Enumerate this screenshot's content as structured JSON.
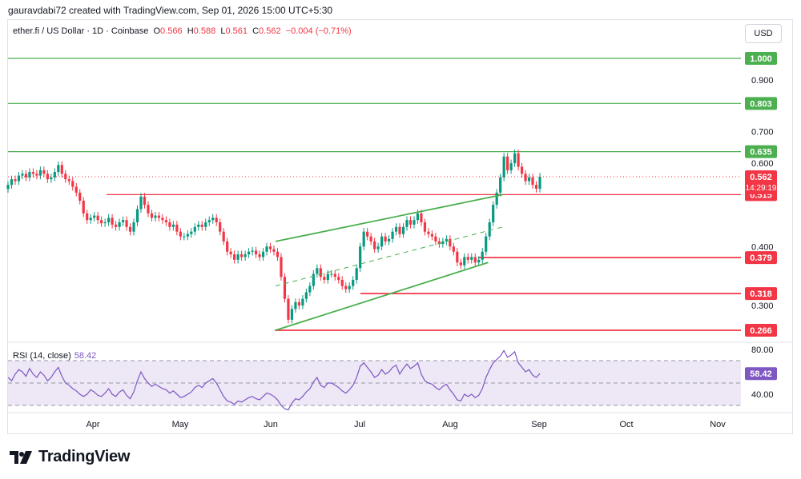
{
  "header": {
    "attribution": "gauravdabi72 created with TradingView.com, Sep 01, 2026 15:00 UTC+5:30"
  },
  "legend": {
    "symbol": "ether.fi / US Dollar · 1D · Coinbase",
    "o_label": "O",
    "o_value": "0.566",
    "h_label": "H",
    "h_value": "0.588",
    "l_label": "L",
    "l_value": "0.561",
    "c_label": "C",
    "c_value": "0.562",
    "change": "−0.004 (−0.71%)"
  },
  "currency_button": "USD",
  "rsi_panel": {
    "label": "RSI (14, close)",
    "value": "58.42"
  },
  "footer": {
    "logo_text": "TradingView"
  },
  "colors": {
    "up": "#089981",
    "down": "#f23645",
    "support_line": "#f23645",
    "resistance_line": "#4caf50",
    "channel": "#4caf50",
    "rsi_line": "#7e57c2",
    "rsi_band": "#ede7f6",
    "current_price_dotted": "#f23645"
  },
  "chart_data": [
    {
      "type": "candlestick",
      "title": "ether.fi / US Dollar · 1D · Coinbase",
      "x_tick_labels": [
        "Apr",
        "May",
        "Jun",
        "Jul",
        "Aug",
        "Sep",
        "Oct",
        "Nov"
      ],
      "y_tick_labels": [
        "0.900",
        "0.700",
        "0.600",
        "0.400",
        "0.300"
      ],
      "ylim": [
        0.24,
        1.1
      ],
      "y_scale": "log",
      "grid": false,
      "horizontal_levels": [
        {
          "value": 1.0,
          "label": "1.000",
          "style": "resistance"
        },
        {
          "value": 0.803,
          "label": "0.803",
          "style": "resistance"
        },
        {
          "value": 0.635,
          "label": "0.635",
          "style": "resistance"
        },
        {
          "value": 0.515,
          "label": "0.515",
          "style": "support"
        },
        {
          "value": 0.379,
          "label": "0.379",
          "style": "support"
        },
        {
          "value": 0.318,
          "label": "0.318",
          "style": "support"
        },
        {
          "value": 0.266,
          "label": "0.266",
          "style": "support"
        }
      ],
      "current_price": {
        "value": 0.562,
        "label": "0.562",
        "countdown": "14:29:19"
      },
      "ascending_channel": {
        "upper": [
          [
            "Jun 01",
            0.41
          ],
          [
            "Aug 19",
            0.515
          ]
        ],
        "middle": [
          [
            "Jun 01",
            0.33
          ],
          [
            "Aug 19",
            0.44
          ]
        ],
        "lower": [
          [
            "Jun 01",
            0.266
          ],
          [
            "Aug 14",
            0.37
          ]
        ]
      },
      "close_series": [
        0.54,
        0.555,
        0.55,
        0.565,
        0.57,
        0.56,
        0.575,
        0.57,
        0.565,
        0.58,
        0.57,
        0.555,
        0.56,
        0.575,
        0.595,
        0.57,
        0.555,
        0.55,
        0.535,
        0.52,
        0.5,
        0.47,
        0.455,
        0.46,
        0.465,
        0.455,
        0.448,
        0.45,
        0.46,
        0.445,
        0.44,
        0.45,
        0.455,
        0.44,
        0.43,
        0.45,
        0.48,
        0.51,
        0.49,
        0.47,
        0.46,
        0.465,
        0.46,
        0.455,
        0.45,
        0.44,
        0.445,
        0.43,
        0.42,
        0.42,
        0.425,
        0.43,
        0.44,
        0.445,
        0.44,
        0.45,
        0.455,
        0.46,
        0.45,
        0.43,
        0.41,
        0.39,
        0.385,
        0.375,
        0.385,
        0.38,
        0.385,
        0.39,
        0.392,
        0.385,
        0.38,
        0.39,
        0.4,
        0.395,
        0.39,
        0.38,
        0.345,
        0.31,
        0.28,
        0.295,
        0.305,
        0.3,
        0.31,
        0.32,
        0.33,
        0.35,
        0.36,
        0.345,
        0.34,
        0.35,
        0.35,
        0.345,
        0.34,
        0.33,
        0.325,
        0.33,
        0.34,
        0.36,
        0.4,
        0.43,
        0.42,
        0.41,
        0.395,
        0.4,
        0.42,
        0.41,
        0.415,
        0.43,
        0.44,
        0.425,
        0.44,
        0.455,
        0.445,
        0.455,
        0.47,
        0.45,
        0.43,
        0.425,
        0.42,
        0.41,
        0.405,
        0.41,
        0.415,
        0.4,
        0.39,
        0.37,
        0.365,
        0.38,
        0.375,
        0.38,
        0.37,
        0.375,
        0.39,
        0.42,
        0.45,
        0.49,
        0.52,
        0.56,
        0.62,
        0.58,
        0.6,
        0.63,
        0.59,
        0.57,
        0.55,
        0.56,
        0.54,
        0.53,
        0.562
      ]
    },
    {
      "type": "line",
      "title": "RSI (14, close)",
      "y_tick_labels": [
        "80.00",
        "40.00"
      ],
      "ylim": [
        25,
        85
      ],
      "bands": [
        70,
        50,
        30
      ],
      "current_value": 58.42,
      "values": [
        55,
        52,
        58,
        62,
        60,
        56,
        63,
        58,
        55,
        60,
        57,
        52,
        55,
        60,
        64,
        56,
        50,
        48,
        45,
        43,
        40,
        38,
        40,
        44,
        42,
        39,
        38,
        41,
        45,
        40,
        38,
        42,
        44,
        39,
        36,
        42,
        52,
        60,
        54,
        50,
        47,
        49,
        47,
        45,
        44,
        41,
        43,
        40,
        37,
        38,
        40,
        42,
        46,
        48,
        46,
        50,
        52,
        54,
        50,
        44,
        38,
        34,
        33,
        31,
        34,
        33,
        35,
        37,
        38,
        36,
        35,
        38,
        41,
        40,
        38,
        35,
        30,
        27,
        26,
        32,
        36,
        35,
        38,
        42,
        45,
        51,
        55,
        48,
        46,
        50,
        50,
        48,
        46,
        43,
        41,
        44,
        48,
        55,
        65,
        68,
        64,
        60,
        55,
        57,
        62,
        58,
        60,
        64,
        66,
        58,
        63,
        67,
        63,
        65,
        68,
        58,
        52,
        50,
        49,
        46,
        44,
        47,
        49,
        44,
        40,
        35,
        34,
        40,
        38,
        40,
        37,
        39,
        45,
        55,
        62,
        68,
        71,
        74,
        79,
        73,
        75,
        78,
        68,
        64,
        60,
        62,
        57,
        55,
        58.42
      ]
    }
  ]
}
